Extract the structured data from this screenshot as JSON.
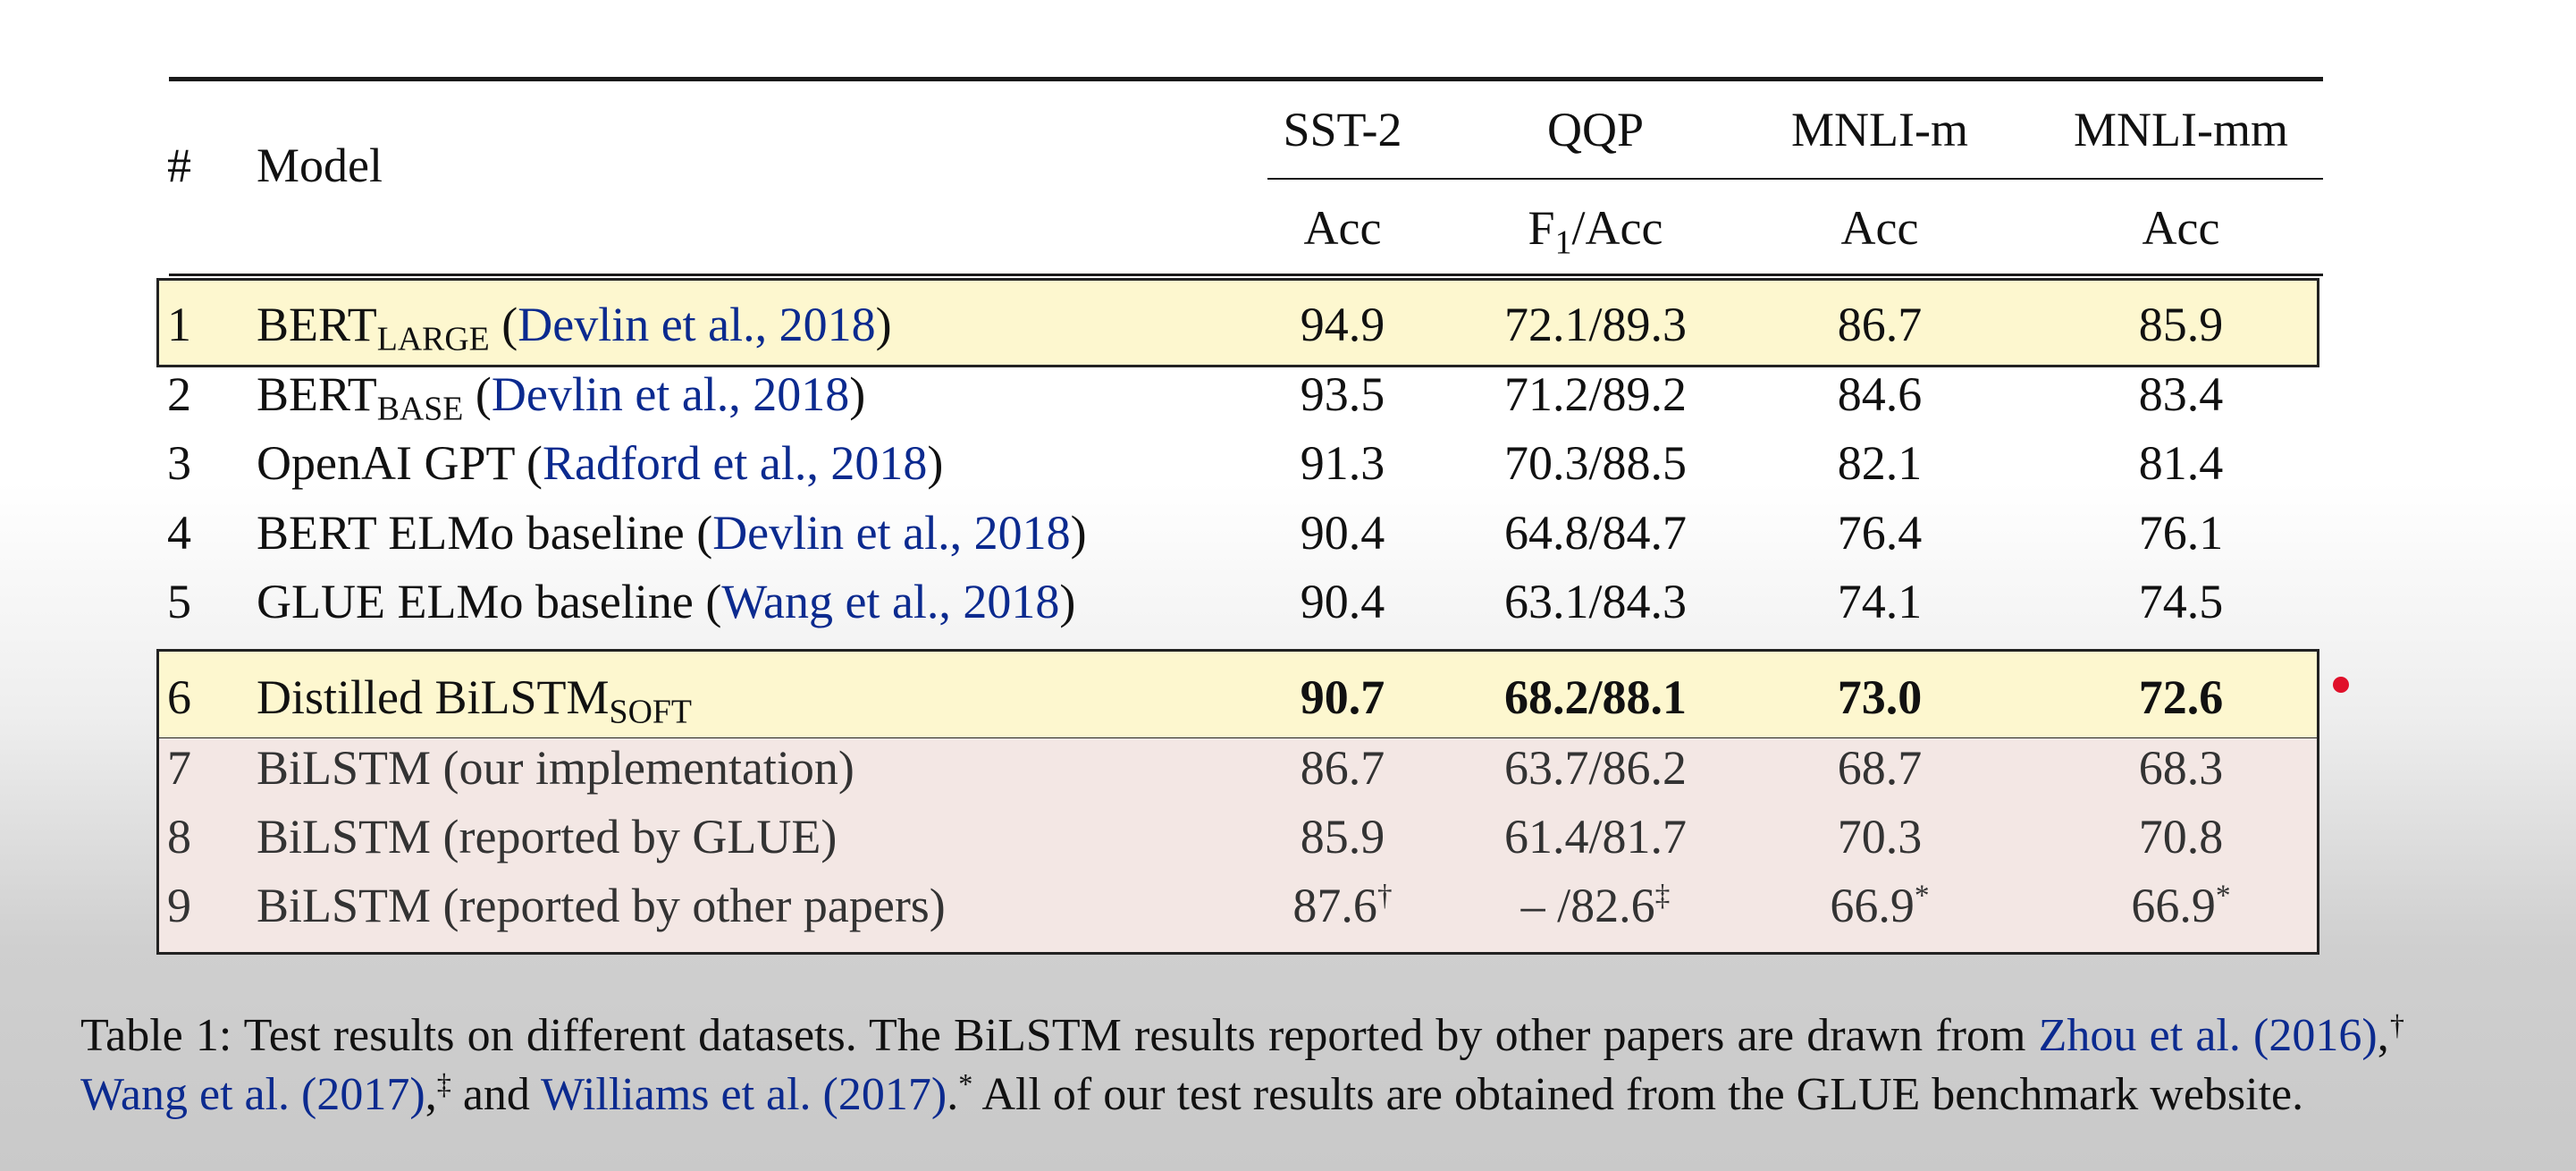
{
  "table": {
    "columns": {
      "num": "#",
      "model": "Model",
      "datasets": [
        {
          "name": "SST-2",
          "metric": "Acc",
          "metric_main": "Acc",
          "metric_sub": ""
        },
        {
          "name": "QQP",
          "metric": "F1/Acc",
          "metric_main": "F",
          "metric_sub": "1",
          "metric_rest": "/Acc"
        },
        {
          "name": "MNLI-m",
          "metric": "Acc",
          "metric_main": "Acc",
          "metric_sub": ""
        },
        {
          "name": "MNLI-mm",
          "metric": "Acc",
          "metric_main": "Acc",
          "metric_sub": ""
        }
      ]
    },
    "rows": [
      {
        "num": "1",
        "model": "BERT",
        "model_sub": "LARGE",
        "model_rest": " (",
        "cite": "Devlin et al., 2018",
        "close": ")",
        "sst2": "94.9",
        "qqp": "72.1/89.3",
        "mnli_m": "86.7",
        "mnli_mm": "85.9",
        "highlight": "yellow"
      },
      {
        "num": "2",
        "model": "BERT",
        "model_sub": "BASE",
        "model_rest": " (",
        "cite": "Devlin et al., 2018",
        "close": ")",
        "sst2": "93.5",
        "qqp": "71.2/89.2",
        "mnli_m": "84.6",
        "mnli_mm": "83.4"
      },
      {
        "num": "3",
        "model": "OpenAI GPT (",
        "cite": "Radford et al., 2018",
        "close": ")",
        "sst2": "91.3",
        "qqp": "70.3/88.5",
        "mnli_m": "82.1",
        "mnli_mm": "81.4"
      },
      {
        "num": "4",
        "model": "BERT ELMo baseline (",
        "cite": "Devlin et al., 2018",
        "close": ")",
        "sst2": "90.4",
        "qqp": "64.8/84.7",
        "mnli_m": "76.4",
        "mnli_mm": "76.1"
      },
      {
        "num": "5",
        "model": "GLUE ELMo baseline (",
        "cite": "Wang et al., 2018",
        "close": ")",
        "sst2": "90.4",
        "qqp": "63.1/84.3",
        "mnli_m": "74.1",
        "mnli_mm": "74.5"
      },
      {
        "num": "6",
        "model": "Distilled BiLSTM",
        "model_sub": "SOFT",
        "sst2": "90.7",
        "qqp": "68.2/88.1",
        "mnli_m": "73.0",
        "mnli_mm": "72.6",
        "highlight": "yellow",
        "bold": true
      },
      {
        "num": "7",
        "model": "BiLSTM (our implementation)",
        "sst2": "86.7",
        "qqp": "63.7/86.2",
        "mnli_m": "68.7",
        "mnli_mm": "68.3",
        "highlight": "pink"
      },
      {
        "num": "8",
        "model": "BiLSTM (reported by GLUE)",
        "sst2": "85.9",
        "qqp": "61.4/81.7",
        "mnli_m": "70.3",
        "mnli_mm": "70.8",
        "highlight": "pink"
      },
      {
        "num": "9",
        "model": "BiLSTM (reported by other papers)",
        "sst2": "87.6",
        "sst2_sup": "†",
        "qqp": "–  /82.6",
        "qqp_sup": "‡",
        "mnli_m": "66.9",
        "mnli_m_sup": "*",
        "mnli_mm": "66.9",
        "mnli_mm_sup": "*",
        "highlight": "pink"
      }
    ],
    "highlight_colors": {
      "yellow": "#fdf7cf",
      "pink": "#f3e7e4"
    }
  },
  "caption": {
    "part1": "Table 1:  Test results on different datasets.  The BiLSTM results reported by other papers are drawn from ",
    "cite1": "Zhou et al. (2016)",
    "part2": ",",
    "sup1": "†",
    "cite2": "Wang et al. (2017)",
    "part3": ",",
    "sup2": "‡",
    "part4": " and ",
    "cite3": "Williams et al. (2017)",
    "part5": ".",
    "sup3": "*",
    "part6": " All of our test results are obtained from the GLUE benchmark website."
  }
}
